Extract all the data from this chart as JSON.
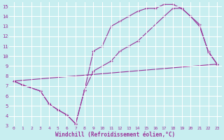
{
  "xlabel": "Windchill (Refroidissement éolien,°C)",
  "xlim": [
    -0.5,
    23.5
  ],
  "ylim": [
    3,
    15.4
  ],
  "yticks": [
    3,
    4,
    5,
    6,
    7,
    8,
    9,
    10,
    11,
    12,
    13,
    14,
    15
  ],
  "xticks": [
    0,
    1,
    2,
    3,
    4,
    5,
    6,
    7,
    8,
    9,
    10,
    11,
    12,
    13,
    14,
    15,
    16,
    17,
    18,
    19,
    20,
    21,
    22,
    23
  ],
  "bg_color": "#c8eef0",
  "grid_color": "#ffffff",
  "line_color": "#993399",
  "curve1_x": [
    0,
    1,
    3,
    4,
    5,
    6,
    7,
    8,
    9,
    10,
    11,
    12,
    13,
    14,
    15,
    16,
    17,
    18,
    19,
    20,
    21,
    22,
    23
  ],
  "curve1_y": [
    7.5,
    7.1,
    6.5,
    5.2,
    4.6,
    4.1,
    3.2,
    6.6,
    10.5,
    11.0,
    13.0,
    13.5,
    14.0,
    14.5,
    14.8,
    14.8,
    15.2,
    15.2,
    14.8,
    14.0,
    13.0,
    10.5,
    9.2
  ],
  "curve2_x": [
    0,
    1,
    3,
    4,
    5,
    6,
    7,
    8,
    9,
    10,
    11,
    12,
    13,
    14,
    17,
    18,
    19,
    20,
    21,
    22,
    23
  ],
  "curve2_y": [
    7.5,
    7.1,
    6.5,
    5.2,
    4.6,
    4.1,
    3.2,
    6.6,
    8.5,
    9.0,
    9.5,
    10.5,
    11.0,
    11.5,
    14.0,
    14.8,
    14.8,
    14.0,
    13.2,
    10.4,
    9.2
  ],
  "line3_x": [
    0,
    23
  ],
  "line3_y": [
    7.5,
    9.2
  ]
}
